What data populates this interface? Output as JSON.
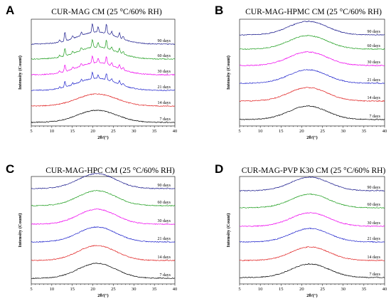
{
  "chart_data": [
    {
      "type": "line",
      "panel_letter": "A",
      "title": "CUR-MAG CM (25 °C/60% RH)",
      "xlabel": "2θ/(°)",
      "ylabel": "Intensity (Count)",
      "xlim": [
        5,
        40
      ],
      "xticks": [
        5,
        10,
        15,
        20,
        25,
        30,
        35,
        40
      ],
      "grid": false,
      "series": [
        {
          "name": "7 days",
          "color": "#000000",
          "profile": "amorphous"
        },
        {
          "name": "14 days",
          "color": "#e02020",
          "profile": "amorphous"
        },
        {
          "name": "21 days",
          "color": "#1e22cc",
          "profile": "crystalline"
        },
        {
          "name": "30 days",
          "color": "#ee00ee",
          "profile": "crystalline"
        },
        {
          "name": "60 days",
          "color": "#1f9e1f",
          "profile": "crystalline"
        },
        {
          "name": "90 days",
          "color": "#1a1a8c",
          "profile": "crystalline"
        }
      ]
    },
    {
      "type": "line",
      "panel_letter": "B",
      "title": "CUR-MAG-HPMC CM (25 °C/60% RH)",
      "xlabel": "2θ/(°)",
      "ylabel": "Intensity (Count)",
      "xlim": [
        5,
        40
      ],
      "xticks": [
        5,
        10,
        15,
        20,
        25,
        30,
        35,
        40
      ],
      "grid": false,
      "series": [
        {
          "name": "7 days",
          "color": "#000000",
          "profile": "amorphous"
        },
        {
          "name": "14 days",
          "color": "#e02020",
          "profile": "amorphous"
        },
        {
          "name": "21 days",
          "color": "#1e22cc",
          "profile": "amorphous"
        },
        {
          "name": "30 days",
          "color": "#ee00ee",
          "profile": "amorphous"
        },
        {
          "name": "60 days",
          "color": "#1f9e1f",
          "profile": "amorphous"
        },
        {
          "name": "90 days",
          "color": "#1a1a8c",
          "profile": "amorphous"
        }
      ]
    },
    {
      "type": "line",
      "panel_letter": "C",
      "title": "CUR-MAG-HPC CM (25 °C/60% RH)",
      "xlabel": "2θ/(°)",
      "ylabel": "Intensity (Count)",
      "xlim": [
        5,
        40
      ],
      "xticks": [
        5,
        10,
        15,
        20,
        25,
        30,
        35,
        40
      ],
      "grid": false,
      "series": [
        {
          "name": "7 days",
          "color": "#000000",
          "profile": "amorphous"
        },
        {
          "name": "14 days",
          "color": "#e02020",
          "profile": "amorphous"
        },
        {
          "name": "21 days",
          "color": "#1e22cc",
          "profile": "amorphous"
        },
        {
          "name": "30 days",
          "color": "#ee00ee",
          "profile": "amorphous"
        },
        {
          "name": "60 days",
          "color": "#1f9e1f",
          "profile": "amorphous"
        },
        {
          "name": "90 days",
          "color": "#1a1a8c",
          "profile": "amorphous"
        }
      ]
    },
    {
      "type": "line",
      "panel_letter": "D",
      "title": "CUR-MAG-PVP K30 CM (25 °C/60% RH)",
      "xlabel": "2θ/(°)",
      "ylabel": "Intensity (Count)",
      "xlim": [
        5,
        40
      ],
      "xticks": [
        5,
        10,
        15,
        20,
        25,
        30,
        35,
        40
      ],
      "grid": false,
      "series": [
        {
          "name": "7 days",
          "color": "#000000",
          "profile": "amorphous"
        },
        {
          "name": "14 days",
          "color": "#e02020",
          "profile": "amorphous"
        },
        {
          "name": "21 days",
          "color": "#1e22cc",
          "profile": "amorphous"
        },
        {
          "name": "30 days",
          "color": "#ee00ee",
          "profile": "amorphous"
        },
        {
          "name": "60 days",
          "color": "#1f9e1f",
          "profile": "amorphous"
        },
        {
          "name": "90 days",
          "color": "#1a1a8c",
          "profile": "amorphous"
        }
      ]
    }
  ]
}
